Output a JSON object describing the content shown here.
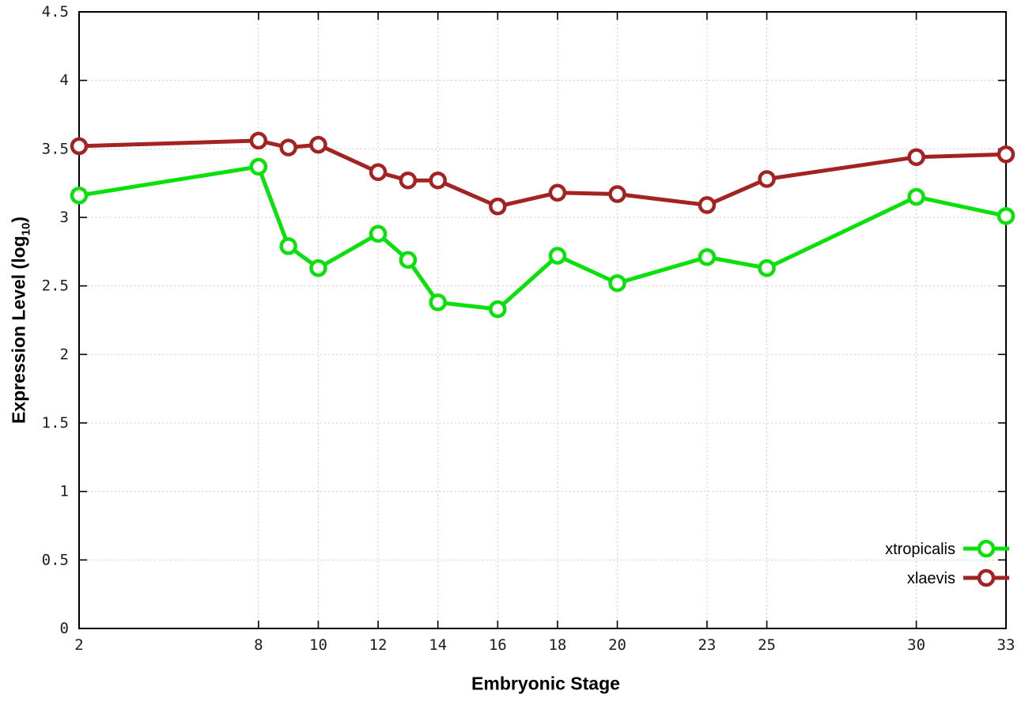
{
  "chart_data": {
    "type": "line",
    "title": "",
    "xlabel": "Embryonic Stage",
    "ylabel": "Expression Level (log10)",
    "ylabel_prefix": "Expression Level (log",
    "ylabel_subscript": "10",
    "ylabel_suffix": ")",
    "xlim": [
      2,
      33
    ],
    "ylim": [
      0,
      4.5
    ],
    "x_ticks": [
      2,
      8,
      10,
      12,
      14,
      16,
      18,
      20,
      23,
      25,
      30,
      33
    ],
    "y_ticks": [
      0,
      0.5,
      1,
      1.5,
      2,
      2.5,
      3,
      3.5,
      4,
      4.5
    ],
    "grid": true,
    "legend_position": "bottom-right",
    "x": [
      2,
      8,
      9,
      10,
      12,
      13,
      14,
      16,
      18,
      20,
      23,
      25,
      30,
      33
    ],
    "series": [
      {
        "name": "xtropicalis",
        "color": "#0ae00a",
        "values": [
          3.16,
          3.37,
          2.79,
          2.63,
          2.88,
          2.69,
          2.38,
          2.33,
          2.72,
          2.52,
          2.71,
          2.63,
          3.15,
          3.01
        ]
      },
      {
        "name": "xlaevis",
        "color": "#a32222",
        "values": [
          3.52,
          3.56,
          3.51,
          3.53,
          3.33,
          3.27,
          3.27,
          3.08,
          3.18,
          3.17,
          3.09,
          3.28,
          3.44,
          3.46
        ]
      }
    ]
  }
}
